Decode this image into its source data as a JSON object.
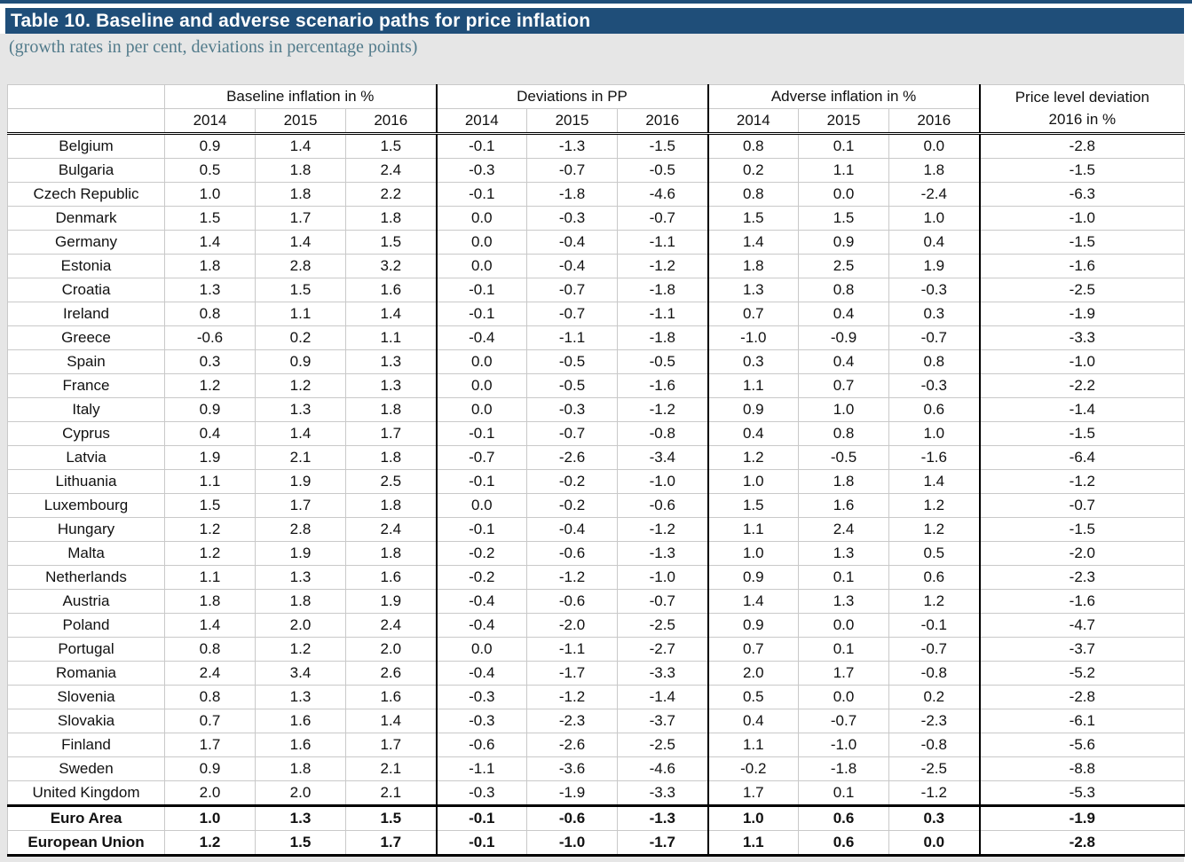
{
  "title": "Table 10. Baseline and adverse scenario paths for price inflation",
  "subtitle": "(growth rates in per cent, deviations in percentage points)",
  "colors": {
    "title_bar_bg": "#1f4e79",
    "title_text": "#ffffff",
    "subtitle_text": "#527b8b",
    "figure_bg": "#e6e6e6",
    "grid_line": "#c9c9c9",
    "heavy_line": "#000000"
  },
  "table": {
    "group_headers": [
      "Baseline inflation in %",
      "Deviations in PP",
      "Adverse inflation in %"
    ],
    "price_header_line1": "Price level deviation",
    "price_header_line2": "2016 in %",
    "year_headers": [
      "2014",
      "2015",
      "2016",
      "2014",
      "2015",
      "2016",
      "2014",
      "2015",
      "2016"
    ],
    "rows": [
      {
        "country": "Belgium",
        "values": [
          "0.9",
          "1.4",
          "1.5",
          "-0.1",
          "-1.3",
          "-1.5",
          "0.8",
          "0.1",
          "0.0",
          "-2.8"
        ],
        "bold": false,
        "thick_top": false
      },
      {
        "country": "Bulgaria",
        "values": [
          "0.5",
          "1.8",
          "2.4",
          "-0.3",
          "-0.7",
          "-0.5",
          "0.2",
          "1.1",
          "1.8",
          "-1.5"
        ],
        "bold": false,
        "thick_top": false
      },
      {
        "country": "Czech Republic",
        "values": [
          "1.0",
          "1.8",
          "2.2",
          "-0.1",
          "-1.8",
          "-4.6",
          "0.8",
          "0.0",
          "-2.4",
          "-6.3"
        ],
        "bold": false,
        "thick_top": false
      },
      {
        "country": "Denmark",
        "values": [
          "1.5",
          "1.7",
          "1.8",
          "0.0",
          "-0.3",
          "-0.7",
          "1.5",
          "1.5",
          "1.0",
          "-1.0"
        ],
        "bold": false,
        "thick_top": false
      },
      {
        "country": "Germany",
        "values": [
          "1.4",
          "1.4",
          "1.5",
          "0.0",
          "-0.4",
          "-1.1",
          "1.4",
          "0.9",
          "0.4",
          "-1.5"
        ],
        "bold": false,
        "thick_top": false
      },
      {
        "country": "Estonia",
        "values": [
          "1.8",
          "2.8",
          "3.2",
          "0.0",
          "-0.4",
          "-1.2",
          "1.8",
          "2.5",
          "1.9",
          "-1.6"
        ],
        "bold": false,
        "thick_top": false
      },
      {
        "country": "Croatia",
        "values": [
          "1.3",
          "1.5",
          "1.6",
          "-0.1",
          "-0.7",
          "-1.8",
          "1.3",
          "0.8",
          "-0.3",
          "-2.5"
        ],
        "bold": false,
        "thick_top": false
      },
      {
        "country": "Ireland",
        "values": [
          "0.8",
          "1.1",
          "1.4",
          "-0.1",
          "-0.7",
          "-1.1",
          "0.7",
          "0.4",
          "0.3",
          "-1.9"
        ],
        "bold": false,
        "thick_top": false
      },
      {
        "country": "Greece",
        "values": [
          "-0.6",
          "0.2",
          "1.1",
          "-0.4",
          "-1.1",
          "-1.8",
          "-1.0",
          "-0.9",
          "-0.7",
          "-3.3"
        ],
        "bold": false,
        "thick_top": false
      },
      {
        "country": "Spain",
        "values": [
          "0.3",
          "0.9",
          "1.3",
          "0.0",
          "-0.5",
          "-0.5",
          "0.3",
          "0.4",
          "0.8",
          "-1.0"
        ],
        "bold": false,
        "thick_top": false
      },
      {
        "country": "France",
        "values": [
          "1.2",
          "1.2",
          "1.3",
          "0.0",
          "-0.5",
          "-1.6",
          "1.1",
          "0.7",
          "-0.3",
          "-2.2"
        ],
        "bold": false,
        "thick_top": false
      },
      {
        "country": "Italy",
        "values": [
          "0.9",
          "1.3",
          "1.8",
          "0.0",
          "-0.3",
          "-1.2",
          "0.9",
          "1.0",
          "0.6",
          "-1.4"
        ],
        "bold": false,
        "thick_top": false
      },
      {
        "country": "Cyprus",
        "values": [
          "0.4",
          "1.4",
          "1.7",
          "-0.1",
          "-0.7",
          "-0.8",
          "0.4",
          "0.8",
          "1.0",
          "-1.5"
        ],
        "bold": false,
        "thick_top": false
      },
      {
        "country": "Latvia",
        "values": [
          "1.9",
          "2.1",
          "1.8",
          "-0.7",
          "-2.6",
          "-3.4",
          "1.2",
          "-0.5",
          "-1.6",
          "-6.4"
        ],
        "bold": false,
        "thick_top": false
      },
      {
        "country": "Lithuania",
        "values": [
          "1.1",
          "1.9",
          "2.5",
          "-0.1",
          "-0.2",
          "-1.0",
          "1.0",
          "1.8",
          "1.4",
          "-1.2"
        ],
        "bold": false,
        "thick_top": false
      },
      {
        "country": "Luxembourg",
        "values": [
          "1.5",
          "1.7",
          "1.8",
          "0.0",
          "-0.2",
          "-0.6",
          "1.5",
          "1.6",
          "1.2",
          "-0.7"
        ],
        "bold": false,
        "thick_top": false
      },
      {
        "country": "Hungary",
        "values": [
          "1.2",
          "2.8",
          "2.4",
          "-0.1",
          "-0.4",
          "-1.2",
          "1.1",
          "2.4",
          "1.2",
          "-1.5"
        ],
        "bold": false,
        "thick_top": false
      },
      {
        "country": "Malta",
        "values": [
          "1.2",
          "1.9",
          "1.8",
          "-0.2",
          "-0.6",
          "-1.3",
          "1.0",
          "1.3",
          "0.5",
          "-2.0"
        ],
        "bold": false,
        "thick_top": false
      },
      {
        "country": "Netherlands",
        "values": [
          "1.1",
          "1.3",
          "1.6",
          "-0.2",
          "-1.2",
          "-1.0",
          "0.9",
          "0.1",
          "0.6",
          "-2.3"
        ],
        "bold": false,
        "thick_top": false
      },
      {
        "country": "Austria",
        "values": [
          "1.8",
          "1.8",
          "1.9",
          "-0.4",
          "-0.6",
          "-0.7",
          "1.4",
          "1.3",
          "1.2",
          "-1.6"
        ],
        "bold": false,
        "thick_top": false
      },
      {
        "country": "Poland",
        "values": [
          "1.4",
          "2.0",
          "2.4",
          "-0.4",
          "-2.0",
          "-2.5",
          "0.9",
          "0.0",
          "-0.1",
          "-4.7"
        ],
        "bold": false,
        "thick_top": false
      },
      {
        "country": "Portugal",
        "values": [
          "0.8",
          "1.2",
          "2.0",
          "0.0",
          "-1.1",
          "-2.7",
          "0.7",
          "0.1",
          "-0.7",
          "-3.7"
        ],
        "bold": false,
        "thick_top": false
      },
      {
        "country": "Romania",
        "values": [
          "2.4",
          "3.4",
          "2.6",
          "-0.4",
          "-1.7",
          "-3.3",
          "2.0",
          "1.7",
          "-0.8",
          "-5.2"
        ],
        "bold": false,
        "thick_top": false
      },
      {
        "country": "Slovenia",
        "values": [
          "0.8",
          "1.3",
          "1.6",
          "-0.3",
          "-1.2",
          "-1.4",
          "0.5",
          "0.0",
          "0.2",
          "-2.8"
        ],
        "bold": false,
        "thick_top": false
      },
      {
        "country": "Slovakia",
        "values": [
          "0.7",
          "1.6",
          "1.4",
          "-0.3",
          "-2.3",
          "-3.7",
          "0.4",
          "-0.7",
          "-2.3",
          "-6.1"
        ],
        "bold": false,
        "thick_top": false
      },
      {
        "country": "Finland",
        "values": [
          "1.7",
          "1.6",
          "1.7",
          "-0.6",
          "-2.6",
          "-2.5",
          "1.1",
          "-1.0",
          "-0.8",
          "-5.6"
        ],
        "bold": false,
        "thick_top": false
      },
      {
        "country": "Sweden",
        "values": [
          "0.9",
          "1.8",
          "2.1",
          "-1.1",
          "-3.6",
          "-4.6",
          "-0.2",
          "-1.8",
          "-2.5",
          "-8.8"
        ],
        "bold": false,
        "thick_top": false
      },
      {
        "country": "United Kingdom",
        "values": [
          "2.0",
          "2.0",
          "2.1",
          "-0.3",
          "-1.9",
          "-3.3",
          "1.7",
          "0.1",
          "-1.2",
          "-5.3"
        ],
        "bold": false,
        "thick_top": false
      },
      {
        "country": "Euro Area",
        "values": [
          "1.0",
          "1.3",
          "1.5",
          "-0.1",
          "-0.6",
          "-1.3",
          "1.0",
          "0.6",
          "0.3",
          "-1.9"
        ],
        "bold": true,
        "thick_top": true
      },
      {
        "country": "European Union",
        "values": [
          "1.2",
          "1.5",
          "1.7",
          "-0.1",
          "-1.0",
          "-1.7",
          "1.1",
          "0.6",
          "0.0",
          "-2.8"
        ],
        "bold": true,
        "thick_top": false
      }
    ]
  }
}
